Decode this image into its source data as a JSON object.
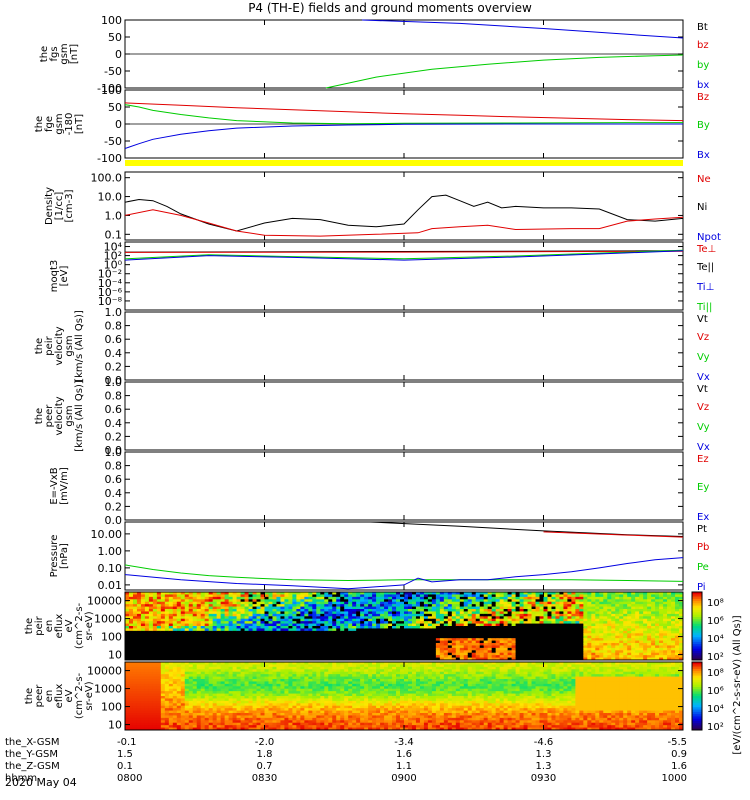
{
  "title": "P4 (TH-E) fields and ground moments overview",
  "date": "2020 May 04",
  "colors": {
    "black": "#000000",
    "red": "#e00000",
    "green": "#00cc00",
    "blue": "#0000e0",
    "yellow": "#ffff00"
  },
  "time_axis": {
    "x_range_hours": [
      8.0,
      10.0
    ],
    "tick_hhmm": [
      "0800",
      "0830",
      "0900",
      "0930",
      "1000"
    ],
    "row_labels": [
      "the_X-GSM",
      "the_Y-GSM",
      "the_Z-GSM",
      "hhmm"
    ],
    "rows": {
      "x_gsm": [
        "-0.1",
        "-2.0",
        "-3.4",
        "-4.6",
        "-5.5"
      ],
      "y_gsm": [
        "1.5",
        "1.8",
        "1.6",
        "1.3",
        "0.9"
      ],
      "z_gsm": [
        "0.1",
        "0.7",
        "1.1",
        "1.3",
        "1.6"
      ]
    }
  },
  "chart_data": [
    {
      "type": "line",
      "panel": "fgs",
      "ylabel": [
        "the",
        "fgs",
        "gsm",
        "[nT]"
      ],
      "ylim": [
        -100,
        100
      ],
      "yticks": [
        "100",
        "50",
        "0",
        "-50",
        "-100"
      ],
      "legend": [
        {
          "label": "Bt",
          "color": "#000000"
        },
        {
          "label": "bz",
          "color": "#e00000"
        },
        {
          "label": "by",
          "color": "#00cc00"
        },
        {
          "label": "bx",
          "color": "#0000e0"
        }
      ],
      "series": [
        {
          "color": "#0000e0",
          "x": [
            8.85,
            9.2,
            9.5,
            9.8,
            10.0
          ],
          "y": [
            106,
            90,
            75,
            58,
            47
          ]
        },
        {
          "color": "#00cc00",
          "x": [
            8.72,
            8.9,
            9.1,
            9.3,
            9.5,
            9.7,
            9.9,
            10.0
          ],
          "y": [
            -100,
            -68,
            -45,
            -30,
            -18,
            -10,
            -5,
            -3
          ]
        }
      ]
    },
    {
      "type": "line",
      "panel": "fge",
      "ylabel": [
        "the",
        "fge",
        "gsm",
        "-180",
        "[nT]"
      ],
      "ylim": [
        -100,
        100
      ],
      "yticks": [
        "100",
        "50",
        "0",
        "-50",
        "-100"
      ],
      "legend": [
        {
          "label": "Bz",
          "color": "#e00000"
        },
        {
          "label": "By",
          "color": "#00cc00"
        },
        {
          "label": "Bx",
          "color": "#0000e0"
        }
      ],
      "series": [
        {
          "color": "#e00000",
          "x": [
            8.0,
            8.2,
            8.4,
            8.6,
            8.8,
            9.0,
            9.2,
            9.4,
            9.6,
            9.8,
            10.0
          ],
          "y": [
            62,
            55,
            48,
            42,
            36,
            30,
            26,
            21,
            17,
            13,
            10
          ]
        },
        {
          "color": "#00cc00",
          "x": [
            8.0,
            8.05,
            8.1,
            8.2,
            8.3,
            8.4,
            8.6,
            8.8,
            9.0,
            9.4,
            9.8,
            10.0
          ],
          "y": [
            57,
            50,
            40,
            28,
            18,
            10,
            3,
            1,
            2,
            3,
            4,
            4
          ]
        },
        {
          "color": "#0000e0",
          "x": [
            8.0,
            8.05,
            8.1,
            8.2,
            8.3,
            8.4,
            8.6,
            8.8,
            9.0,
            9.4,
            9.8,
            10.0
          ],
          "y": [
            -72,
            -58,
            -45,
            -30,
            -20,
            -12,
            -6,
            -3,
            -1,
            0,
            0,
            0
          ]
        }
      ]
    },
    {
      "type": "line",
      "panel": "density",
      "ylabel": [
        "Density",
        "[1/cc]",
        "[cm-3]"
      ],
      "yscale": "log",
      "ylim": [
        0.05,
        200
      ],
      "yticks": [
        "100.0",
        "10.0",
        "1.0",
        "0.1"
      ],
      "legend": [
        {
          "label": "Ne",
          "color": "#e00000"
        },
        {
          "label": "Ni",
          "color": "#000000"
        },
        {
          "label": "Npot",
          "color": "#0000e0"
        }
      ],
      "series": [
        {
          "color": "#000000",
          "x": [
            8.0,
            8.05,
            8.1,
            8.15,
            8.2,
            8.3,
            8.4,
            8.5,
            8.6,
            8.7,
            8.8,
            8.9,
            9.0,
            9.05,
            9.1,
            9.15,
            9.2,
            9.25,
            9.3,
            9.35,
            9.4,
            9.5,
            9.6,
            9.7,
            9.8,
            9.9,
            10.0
          ],
          "y": [
            5,
            7,
            6,
            3,
            1.2,
            0.35,
            0.15,
            0.4,
            0.7,
            0.6,
            0.3,
            0.25,
            0.35,
            2,
            10,
            12,
            6,
            3,
            5,
            2.5,
            3,
            2.5,
            2.5,
            2.2,
            0.6,
            0.5,
            0.7
          ]
        },
        {
          "color": "#e00000",
          "x": [
            8.0,
            8.1,
            8.2,
            8.3,
            8.4,
            8.5,
            8.7,
            8.9,
            9.05,
            9.1,
            9.2,
            9.3,
            9.4,
            9.6,
            9.7,
            9.8,
            9.9,
            10.0
          ],
          "y": [
            1.0,
            2.0,
            1.0,
            0.4,
            0.15,
            0.09,
            0.08,
            0.1,
            0.12,
            0.2,
            0.25,
            0.3,
            0.18,
            0.2,
            0.2,
            0.5,
            0.65,
            0.8
          ]
        }
      ]
    },
    {
      "type": "line",
      "panel": "temperature",
      "ylabel": [
        "moqt3",
        "[eV]"
      ],
      "yscale": "log",
      "ylim": [
        1e-10,
        100000
      ],
      "yticks": [
        "10⁴",
        "10²",
        "10⁰",
        "10⁻²",
        "10⁻⁴",
        "10⁻⁶",
        "10⁻⁸"
      ],
      "legend": [
        {
          "label": "Te⊥",
          "color": "#e00000"
        },
        {
          "label": "Te||",
          "color": "#000000"
        },
        {
          "label": "Ti⊥",
          "color": "#0000e0"
        },
        {
          "label": "Ti||",
          "color": "#00cc00"
        }
      ],
      "series": [
        {
          "color": "#000000",
          "x": [
            8.0,
            9.0,
            10.0
          ],
          "y": [
            600,
            800,
            1200
          ]
        },
        {
          "color": "#e00000",
          "x": [
            8.0,
            9.0,
            10.0
          ],
          "y": [
            500,
            600,
            900
          ]
        },
        {
          "color": "#00cc00",
          "x": [
            8.0,
            8.3,
            8.6,
            9.0,
            9.4,
            9.8,
            10.0
          ],
          "y": [
            20,
            150,
            60,
            20,
            80,
            600,
            1500
          ]
        },
        {
          "color": "#0000e0",
          "x": [
            8.0,
            8.3,
            8.6,
            9.0,
            9.4,
            9.8,
            10.0
          ],
          "y": [
            10,
            100,
            40,
            10,
            50,
            400,
            1200
          ]
        }
      ]
    },
    {
      "type": "line",
      "panel": "peir-velocity",
      "ylabel": [
        "the",
        "peir",
        "velocity",
        "gsm",
        "[km/s (All Qs)]"
      ],
      "ylim": [
        0,
        1
      ],
      "yticks": [
        "1.0",
        "0.8",
        "0.6",
        "0.4",
        "0.2",
        "0.0"
      ],
      "legend": [
        {
          "label": "Vt",
          "color": "#000000"
        },
        {
          "label": "Vz",
          "color": "#e00000"
        },
        {
          "label": "Vy",
          "color": "#00cc00"
        },
        {
          "label": "Vx",
          "color": "#0000e0"
        }
      ],
      "series": []
    },
    {
      "type": "line",
      "panel": "peer-velocity",
      "ylabel": [
        "the",
        "peer",
        "velocity",
        "gsm",
        "[km/s (All Qs)]"
      ],
      "ylim": [
        0,
        1
      ],
      "yticks": [
        "1.0",
        "0.8",
        "0.6",
        "0.4",
        "0.2",
        "0.0"
      ],
      "legend": [
        {
          "label": "Vt",
          "color": "#000000"
        },
        {
          "label": "Vz",
          "color": "#e00000"
        },
        {
          "label": "Vy",
          "color": "#00cc00"
        },
        {
          "label": "Vx",
          "color": "#0000e0"
        }
      ],
      "series": []
    },
    {
      "type": "line",
      "panel": "efield",
      "ylabel": [
        "E=-VxB",
        "[mV/m]"
      ],
      "ylim": [
        0,
        1
      ],
      "yticks": [
        "1.0",
        "0.8",
        "0.6",
        "0.4",
        "0.2",
        "0.0"
      ],
      "legend": [
        {
          "label": "Ez",
          "color": "#e00000"
        },
        {
          "label": "Ey",
          "color": "#00cc00"
        },
        {
          "label": "Ex",
          "color": "#0000e0"
        }
      ],
      "series": []
    },
    {
      "type": "line",
      "panel": "pressure",
      "ylabel": [
        "Pressure",
        "[nPa]"
      ],
      "yscale": "log",
      "ylim": [
        0.005,
        50
      ],
      "yticks": [
        "10.00",
        "1.00",
        "0.10",
        "0.01"
      ],
      "legend": [
        {
          "label": "Pt",
          "color": "#000000"
        },
        {
          "label": "Pb",
          "color": "#e00000"
        },
        {
          "label": "Pe",
          "color": "#00cc00"
        },
        {
          "label": "Pi",
          "color": "#0000e0"
        }
      ],
      "series": [
        {
          "color": "#000000",
          "x": [
            8.88,
            9.2,
            9.5,
            9.8,
            10.0
          ],
          "y": [
            50,
            28,
            15,
            9,
            7
          ]
        },
        {
          "color": "#e00000",
          "x": [
            9.5,
            9.8,
            10.0
          ],
          "y": [
            13,
            8.5,
            6.5
          ]
        },
        {
          "color": "#00cc00",
          "x": [
            8.0,
            8.1,
            8.2,
            8.3,
            8.4,
            8.6,
            8.8,
            9.0,
            9.2,
            9.4,
            9.6,
            9.8,
            10.0
          ],
          "y": [
            0.15,
            0.08,
            0.05,
            0.035,
            0.028,
            0.02,
            0.018,
            0.02,
            0.02,
            0.02,
            0.02,
            0.018,
            0.016
          ]
        },
        {
          "color": "#0000e0",
          "x": [
            8.0,
            8.2,
            8.4,
            8.6,
            8.8,
            9.0,
            9.05,
            9.1,
            9.2,
            9.3,
            9.4,
            9.5,
            9.6,
            9.7,
            9.8,
            9.9,
            10.0
          ],
          "y": [
            0.04,
            0.02,
            0.012,
            0.009,
            0.006,
            0.01,
            0.025,
            0.015,
            0.02,
            0.02,
            0.03,
            0.04,
            0.06,
            0.1,
            0.18,
            0.3,
            0.4
          ]
        }
      ]
    },
    {
      "type": "heatmap",
      "panel": "peir-spectrogram",
      "ylabel": [
        "the",
        "peir",
        "en",
        "eflux",
        "eV",
        "(cm^2-s-",
        "sr-eV)"
      ],
      "yscale": "log",
      "ylim": [
        5,
        30000
      ],
      "yticks": [
        "10000",
        "1000",
        "100",
        "10"
      ],
      "colorbar": {
        "label": "[eV/(cm^2-s-sr-eV) (All Qs)]",
        "ticks": [
          "10⁸",
          "10⁶",
          "10⁴",
          "10²"
        ]
      }
    },
    {
      "type": "heatmap",
      "panel": "peer-spectrogram",
      "ylabel": [
        "the",
        "peer",
        "en",
        "eflux",
        "eV",
        "(cm^2-s-",
        "sr-eV)"
      ],
      "yscale": "log",
      "ylim": [
        5,
        30000
      ],
      "yticks": [
        "10000",
        "1000",
        "100",
        "10"
      ],
      "colorbar": {
        "label": "[eV/(cm^2-s-sr-eV) (All Qs)]",
        "ticks": [
          "10⁸",
          "10⁶",
          "10⁴",
          "10²"
        ]
      }
    }
  ]
}
